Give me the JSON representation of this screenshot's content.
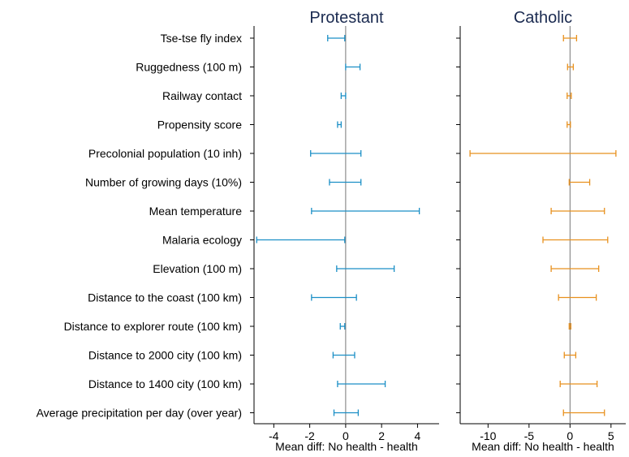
{
  "chart_data": {
    "type": "errorbar",
    "variables": [
      "Tse-tse fly index",
      "Ruggedness (100 m)",
      "Railway contact",
      "Propensity score",
      "Precolonial population (10 inh)",
      "Number of growing days (10%)",
      "Mean temperature",
      "Malaria ecology",
      "Elevation (100 m)",
      "Distance to the coast (100 km)",
      "Distance to explorer route (100 km)",
      "Distance to 2000 city (100 km)",
      "Distance to 1400 city (100 km)",
      "Average precipitation per day (over year)"
    ],
    "panels": [
      {
        "title": "Protestant",
        "xlabel": "Mean diff: No health -  health",
        "xlim": [
          -5.1,
          5.2
        ],
        "xticks": [
          -4,
          -2,
          0,
          2,
          4
        ],
        "xtick_labels": [
          "-4",
          "-2",
          "0",
          "2",
          "4"
        ],
        "color": "#1b8fc6",
        "intervals": [
          [
            -1.0,
            -0.05
          ],
          [
            0.0,
            0.8
          ],
          [
            -0.25,
            0.0
          ],
          [
            -0.45,
            -0.25
          ],
          [
            -1.95,
            0.85
          ],
          [
            -0.9,
            0.85
          ],
          [
            -1.9,
            4.1
          ],
          [
            -4.95,
            -0.05
          ],
          [
            -0.5,
            2.7
          ],
          [
            -1.9,
            0.6
          ],
          [
            -0.3,
            -0.05
          ],
          [
            -0.7,
            0.5
          ],
          [
            -0.45,
            2.2
          ],
          [
            -0.65,
            0.7
          ]
        ]
      },
      {
        "title": "Catholic",
        "xlabel": "Mean diff: No health -  health",
        "xlim": [
          -13.4,
          6.8
        ],
        "xticks": [
          -10,
          -5,
          0,
          5
        ],
        "xtick_labels": [
          "-10",
          "-5",
          "0",
          "5"
        ],
        "color": "#e8911e",
        "intervals": [
          [
            -0.8,
            0.8
          ],
          [
            -0.3,
            0.4
          ],
          [
            -0.35,
            0.15
          ],
          [
            -0.35,
            0.05
          ],
          [
            -12.2,
            5.6
          ],
          [
            -0.1,
            2.4
          ],
          [
            -2.3,
            4.2
          ],
          [
            -3.3,
            4.6
          ],
          [
            -2.3,
            3.5
          ],
          [
            -1.4,
            3.2
          ],
          [
            -0.1,
            0.1
          ],
          [
            -0.7,
            0.7
          ],
          [
            -1.2,
            3.3
          ],
          [
            -0.8,
            4.2
          ]
        ]
      }
    ]
  }
}
